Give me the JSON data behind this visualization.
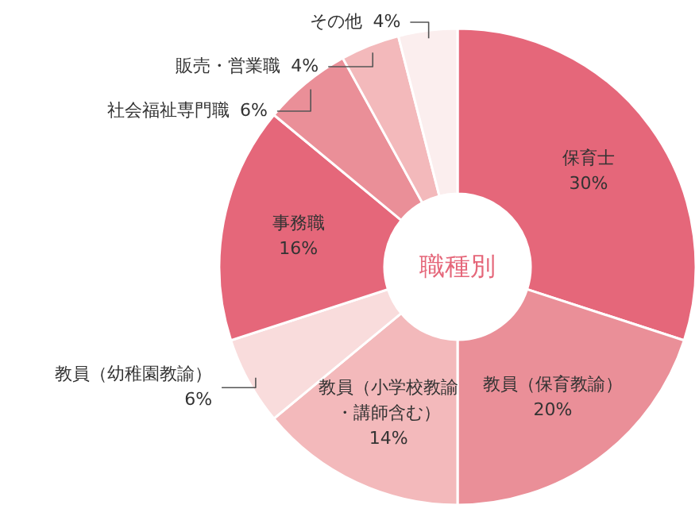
{
  "chart_data": {
    "type": "donut",
    "title": "職種別",
    "categories": [
      "保育士",
      "教員（保育教諭）",
      "教員（小学校教諭・講師含む）",
      "教員（幼稚園教諭）",
      "事務職",
      "社会福祉専門職",
      "販売・営業職",
      "その他"
    ],
    "values": [
      30,
      20,
      14,
      6,
      16,
      6,
      4,
      4
    ],
    "colors": [
      "#e5677a",
      "#ea8f98",
      "#f3b9bb",
      "#f9dcdc",
      "#e5677a",
      "#ea8f98",
      "#f3b9bb",
      "#fbeeee"
    ],
    "value_labels": [
      "30%",
      "20%",
      "14%",
      "6%",
      "16%",
      "6%",
      "4%",
      "4%"
    ]
  }
}
